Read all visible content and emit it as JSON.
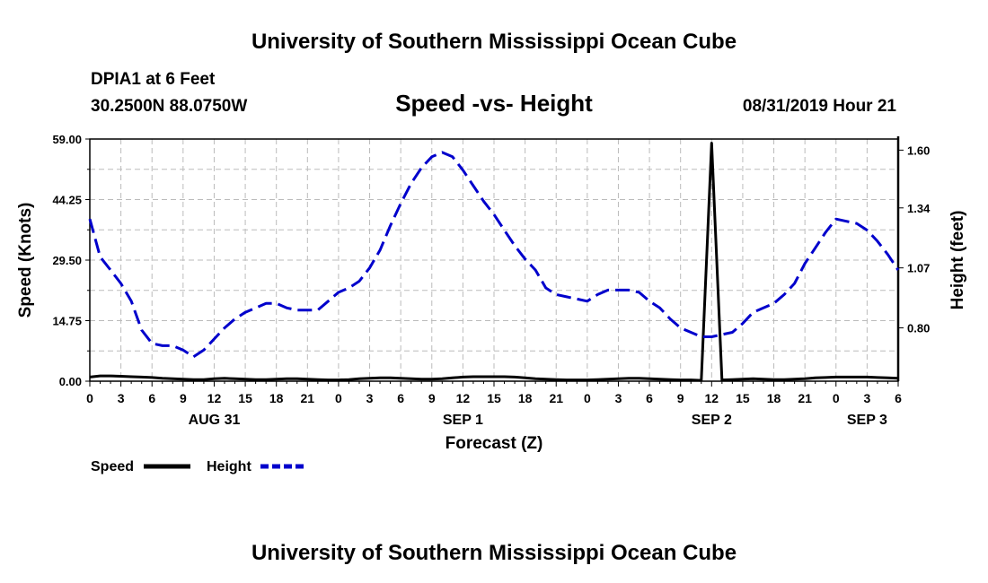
{
  "header": {
    "title": "University of Southern Mississippi Ocean Cube",
    "station": "DPIA1 at 6 Feet",
    "coords": "30.2500N 88.0750W",
    "subtitle": "Speed -vs- Height",
    "date": "08/31/2019 Hour 21"
  },
  "footer": {
    "title": "University of Southern Mississippi Ocean Cube"
  },
  "colors": {
    "speed": "#000000",
    "height": "#0000cc",
    "grid": "#bbbbbb"
  },
  "chart_data": {
    "type": "line",
    "title": "Speed -vs- Height",
    "xlabel": "Forecast (Z)",
    "ylabel_left": "Speed (Knots)",
    "ylabel_right": "Height (feet)",
    "ylim_left": [
      0,
      59
    ],
    "ylim_right": [
      0.56,
      1.65
    ],
    "yticks_left": [
      "59.00",
      "44.25",
      "29.50",
      "14.75",
      "0.00"
    ],
    "yticks_left_values": [
      59,
      44.25,
      29.5,
      14.75,
      0
    ],
    "yticks_right": [
      "1.60",
      "1.34",
      "1.07",
      "0.80"
    ],
    "yticks_right_values": [
      1.6,
      1.34,
      1.07,
      0.8
    ],
    "x_range_hours": [
      0,
      78
    ],
    "x_tick_labels": [
      "0",
      "3",
      "6",
      "9",
      "12",
      "15",
      "18",
      "21",
      "0",
      "3",
      "6",
      "9",
      "12",
      "15",
      "18",
      "21",
      "0",
      "3",
      "6",
      "9",
      "12",
      "15",
      "18",
      "21",
      "0",
      "3",
      "6"
    ],
    "date_labels": [
      {
        "label": "AUG 31",
        "hour": 12
      },
      {
        "label": "SEP 1",
        "hour": 36
      },
      {
        "label": "SEP 2",
        "hour": 60
      },
      {
        "label": "SEP 3",
        "hour": 75
      }
    ],
    "grid": true,
    "legend": [
      {
        "name": "Speed",
        "style": "solid"
      },
      {
        "name": "Height",
        "style": "dashed"
      }
    ],
    "series": [
      {
        "name": "Speed",
        "axis": "left",
        "style": "solid",
        "x": [
          0,
          1,
          2,
          3,
          4,
          5,
          6,
          7,
          8,
          9,
          10,
          11,
          12,
          13,
          14,
          15,
          16,
          17,
          18,
          19,
          20,
          21,
          22,
          23,
          24,
          25,
          26,
          27,
          28,
          29,
          30,
          31,
          32,
          33,
          34,
          35,
          36,
          37,
          38,
          39,
          40,
          41,
          42,
          43,
          44,
          45,
          46,
          47,
          48,
          49,
          50,
          51,
          52,
          53,
          54,
          55,
          56,
          57,
          58,
          59,
          60,
          61,
          62,
          63,
          64,
          65,
          66,
          67,
          68,
          69,
          70,
          71,
          72,
          73,
          74,
          75,
          76,
          77,
          78
        ],
        "values": [
          1.0,
          1.3,
          1.3,
          1.2,
          1.1,
          1.0,
          0.9,
          0.7,
          0.6,
          0.5,
          0.4,
          0.4,
          0.6,
          0.7,
          0.6,
          0.5,
          0.4,
          0.4,
          0.5,
          0.6,
          0.6,
          0.5,
          0.4,
          0.3,
          0.3,
          0.4,
          0.6,
          0.7,
          0.8,
          0.8,
          0.7,
          0.6,
          0.5,
          0.5,
          0.6,
          0.8,
          1.0,
          1.1,
          1.1,
          1.1,
          1.1,
          1.0,
          0.8,
          0.6,
          0.5,
          0.4,
          0.3,
          0.3,
          0.3,
          0.4,
          0.5,
          0.6,
          0.7,
          0.7,
          0.6,
          0.5,
          0.4,
          0.3,
          0.3,
          0.2,
          58.0,
          0.3,
          0.4,
          0.5,
          0.6,
          0.5,
          0.4,
          0.4,
          0.5,
          0.6,
          0.8,
          0.9,
          1.0,
          1.0,
          1.0,
          1.0,
          0.9,
          0.8,
          0.7
        ]
      },
      {
        "name": "Height",
        "axis": "right",
        "style": "dashed",
        "x": [
          0,
          1,
          2,
          3,
          4,
          5,
          6,
          7,
          8,
          9,
          10,
          11,
          12,
          13,
          14,
          15,
          16,
          17,
          18,
          19,
          20,
          21,
          22,
          23,
          24,
          25,
          26,
          27,
          28,
          29,
          30,
          31,
          32,
          33,
          34,
          35,
          36,
          37,
          38,
          39,
          40,
          41,
          42,
          43,
          44,
          45,
          46,
          47,
          48,
          49,
          50,
          51,
          52,
          53,
          54,
          55,
          56,
          57,
          58,
          59,
          60,
          61,
          62,
          63,
          64,
          65,
          66,
          67,
          68,
          69,
          70,
          71,
          72,
          73,
          74,
          75,
          76,
          77,
          78
        ],
        "values": [
          1.29,
          1.12,
          1.06,
          1.0,
          0.92,
          0.79,
          0.73,
          0.72,
          0.72,
          0.7,
          0.67,
          0.7,
          0.75,
          0.8,
          0.84,
          0.87,
          0.89,
          0.91,
          0.91,
          0.89,
          0.88,
          0.88,
          0.88,
          0.92,
          0.96,
          0.98,
          1.01,
          1.07,
          1.15,
          1.26,
          1.36,
          1.45,
          1.52,
          1.57,
          1.59,
          1.57,
          1.51,
          1.44,
          1.37,
          1.31,
          1.24,
          1.17,
          1.11,
          1.06,
          0.98,
          0.95,
          0.94,
          0.93,
          0.92,
          0.95,
          0.97,
          0.97,
          0.97,
          0.96,
          0.92,
          0.89,
          0.84,
          0.8,
          0.78,
          0.76,
          0.76,
          0.77,
          0.78,
          0.82,
          0.87,
          0.89,
          0.91,
          0.95,
          1.0,
          1.09,
          1.16,
          1.23,
          1.29,
          1.28,
          1.27,
          1.24,
          1.19,
          1.13,
          1.06
        ]
      }
    ]
  }
}
